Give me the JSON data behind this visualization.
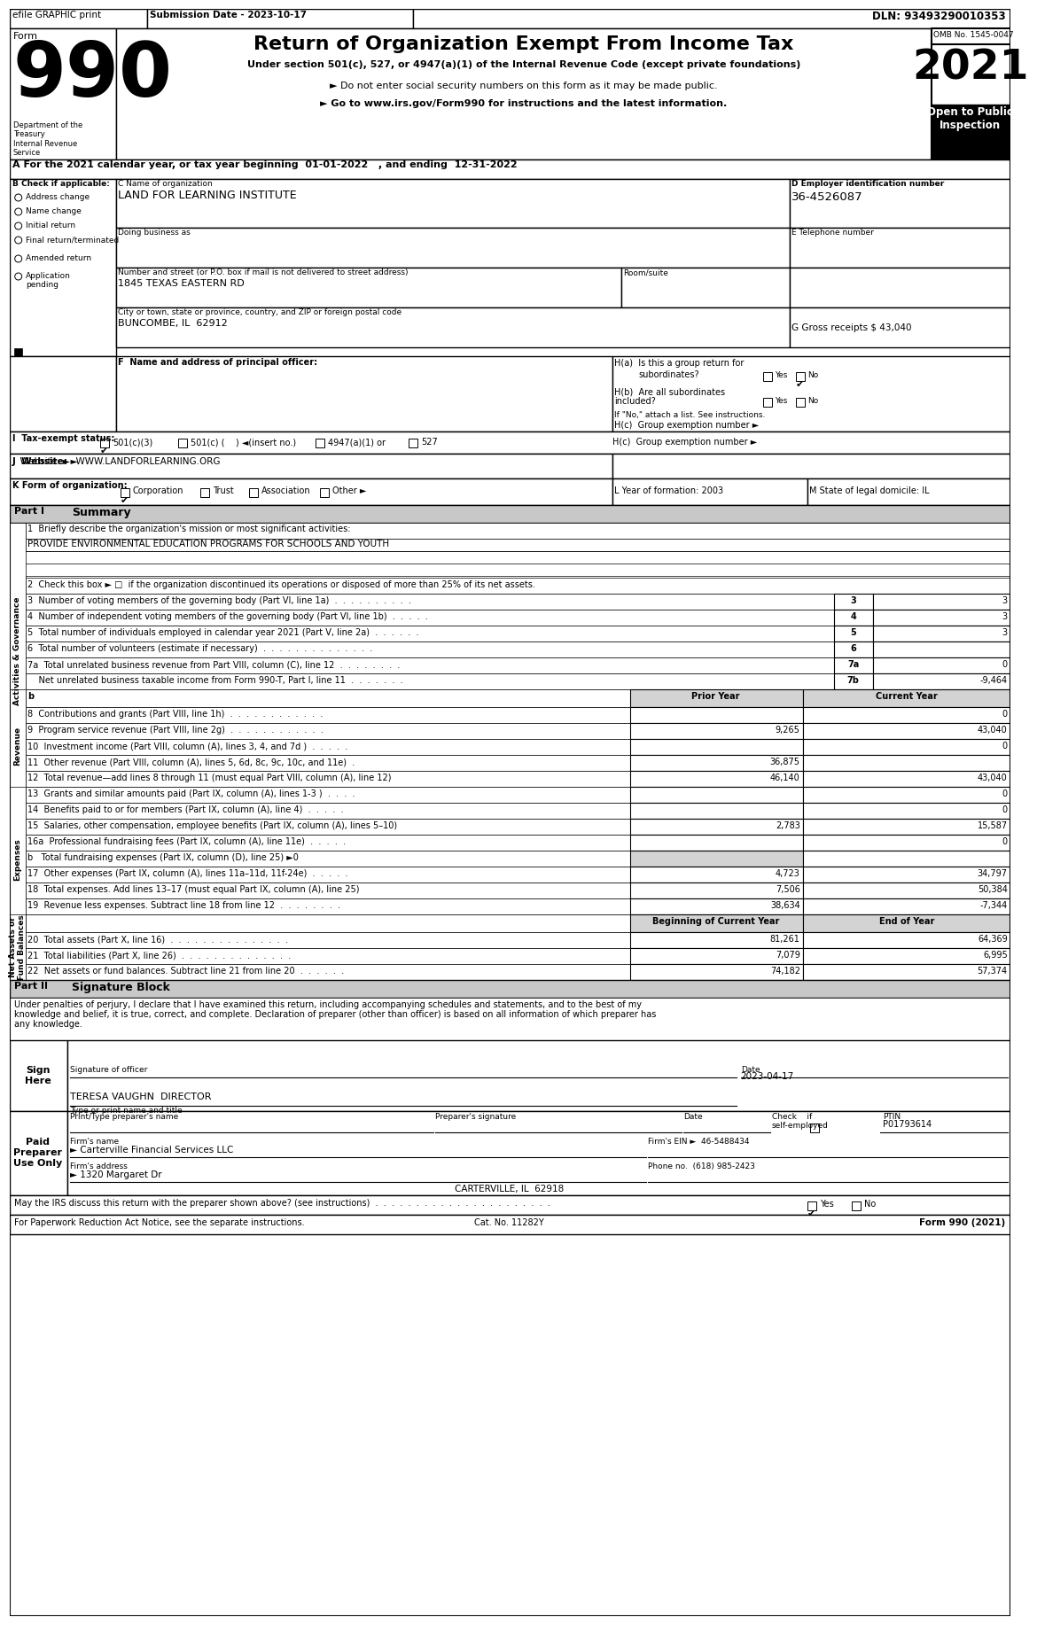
{
  "efile_text": "efile GRAPHIC print",
  "submission_date": "Submission Date - 2023-10-17",
  "dln": "DLN: 93493290010353",
  "title": "Return of Organization Exempt From Income Tax",
  "subtitle1": "Under section 501(c), 527, or 4947(a)(1) of the Internal Revenue Code (except private foundations)",
  "subtitle2": "► Do not enter social security numbers on this form as it may be made public.",
  "subtitle3": "► Go to www.irs.gov/Form990 for instructions and the latest information.",
  "year": "2021",
  "omb": "OMB No. 1545-0047",
  "open_to_public": "Open to Public\nInspection",
  "dept": "Department of the\nTreasury\nInternal Revenue\nService",
  "tax_year_line": "A For the 2021 calendar year, or tax year beginning  01-01-2022   , and ending  12-31-2022",
  "b_label": "B Check if applicable:",
  "c_label": "C Name of organization",
  "org_name": "LAND FOR LEARNING INSTITUTE",
  "dba_label": "Doing business as",
  "street_label": "Number and street (or P.O. box if mail is not delivered to street address)",
  "street": "1845 TEXAS EASTERN RD",
  "room_label": "Room/suite",
  "city_label": "City or town, state or province, country, and ZIP or foreign postal code",
  "city": "BUNCOMBE, IL  62912",
  "d_label": "D Employer identification number",
  "ein": "36-4526087",
  "e_label": "E Telephone number",
  "g_label": "G Gross receipts $ 43,040",
  "f_label": "F  Name and address of principal officer:",
  "ha_label": "H(a)  Is this a group return for",
  "ha_sub": "subordinates?",
  "hb_line1": "H(b)  Are all subordinates",
  "hb_line2": "included?",
  "hb_note": "If \"No,\" attach a list. See instructions.",
  "hc_label": "H(c)  Group exemption number ►",
  "i_label": "I  Tax-exempt status:",
  "i_501c3": "501(c)(3)",
  "i_501c": "501(c) (    ) ◄(insert no.)",
  "i_4947": "4947(a)(1) or",
  "i_527": "527",
  "j_label": "J  Website: ►",
  "website": "WWW.LANDFORLEARNING.ORG",
  "k_label": "K Form of organization:",
  "k_corp": "Corporation",
  "k_trust": "Trust",
  "k_assoc": "Association",
  "k_other": "Other ►",
  "l_label": "L Year of formation: 2003",
  "m_label": "M State of legal domicile: IL",
  "part1_label": "Part I",
  "part1_title": "Summary",
  "line1_label": "1  Briefly describe the organization's mission or most significant activities:",
  "line1_value": "PROVIDE ENVIRONMENTAL EDUCATION PROGRAMS FOR SCHOOLS AND YOUTH",
  "line2_text": "2  Check this box ►",
  "line2_rest": "if the organization discontinued its operations or disposed of more than 25% of its net assets.",
  "line3_label": "3  Number of voting members of the governing body (Part VI, line 1a)  .  .  .  .  .  .  .  .  .  .",
  "line3_num": "3",
  "line3_val": "3",
  "line4_label": "4  Number of independent voting members of the governing body (Part VI, line 1b)  .  .  .  .  .",
  "line4_num": "4",
  "line4_val": "3",
  "line5_label": "5  Total number of individuals employed in calendar year 2021 (Part V, line 2a)  .  .  .  .  .  .",
  "line5_num": "5",
  "line5_val": "3",
  "line6_label": "6  Total number of volunteers (estimate if necessary)  .  .  .  .  .  .  .  .  .  .  .  .  .  .",
  "line6_num": "6",
  "line6_val": "",
  "line7a_label": "7a  Total unrelated business revenue from Part VIII, column (C), line 12  .  .  .  .  .  .  .  .",
  "line7a_num": "7a",
  "line7a_val": "0",
  "line7b_label": "    Net unrelated business taxable income from Form 990-T, Part I, line 11  .  .  .  .  .  .  .",
  "line7b_num": "7b",
  "line7b_val": "-9,464",
  "b_header_label": "b",
  "prior_year_header": "Prior Year",
  "current_year_header": "Current Year",
  "line8_label": "8  Contributions and grants (Part VIII, line 1h)  .  .  .  .  .  .  .  .  .  .  .  .",
  "line8_num": "8",
  "line8_prior": "",
  "line8_current": "0",
  "line9_label": "9  Program service revenue (Part VIII, line 2g)  .  .  .  .  .  .  .  .  .  .  .  .",
  "line9_num": "9",
  "line9_prior": "9,265",
  "line9_current": "43,040",
  "line10_label": "10  Investment income (Part VIII, column (A), lines 3, 4, and 7d )  .  .  .  .  .",
  "line10_num": "10",
  "line10_prior": "",
  "line10_current": "0",
  "line11_label": "11  Other revenue (Part VIII, column (A), lines 5, 6d, 8c, 9c, 10c, and 11e)  .",
  "line11_num": "11",
  "line11_prior": "36,875",
  "line11_current": "",
  "line12_label": "12  Total revenue—add lines 8 through 11 (must equal Part VIII, column (A), line 12)",
  "line12_num": "12",
  "line12_prior": "46,140",
  "line12_current": "43,040",
  "line13_label": "13  Grants and similar amounts paid (Part IX, column (A), lines 1-3 )  .  .  .  .",
  "line13_num": "13",
  "line13_prior": "",
  "line13_current": "0",
  "line14_label": "14  Benefits paid to or for members (Part IX, column (A), line 4)  .  .  .  .  .",
  "line14_num": "14",
  "line14_prior": "",
  "line14_current": "0",
  "line15_label": "15  Salaries, other compensation, employee benefits (Part IX, column (A), lines 5–10)",
  "line15_num": "15",
  "line15_prior": "2,783",
  "line15_current": "15,587",
  "line16a_label": "16a  Professional fundraising fees (Part IX, column (A), line 11e)  .  .  .  .  .",
  "line16a_num": "16a",
  "line16a_prior": "",
  "line16a_current": "0",
  "line16b_label": "b   Total fundraising expenses (Part IX, column (D), line 25) ►0",
  "line17_label": "17  Other expenses (Part IX, column (A), lines 11a–11d, 11f-24e)  .  .  .  .  .",
  "line17_num": "17",
  "line17_prior": "4,723",
  "line17_current": "34,797",
  "line18_label": "18  Total expenses. Add lines 13–17 (must equal Part IX, column (A), line 25)",
  "line18_num": "18",
  "line18_prior": "7,506",
  "line18_current": "50,384",
  "line19_label": "19  Revenue less expenses. Subtract line 18 from line 12  .  .  .  .  .  .  .  .",
  "line19_num": "19",
  "line19_prior": "38,634",
  "line19_current": "-7,344",
  "boc_header": "Beginning of Current Year",
  "eoy_header": "End of Year",
  "line20_label": "20  Total assets (Part X, line 16)  .  .  .  .  .  .  .  .  .  .  .  .  .  .  .",
  "line20_num": "20",
  "line20_boc": "81,261",
  "line20_eoy": "64,369",
  "line21_label": "21  Total liabilities (Part X, line 26)  .  .  .  .  .  .  .  .  .  .  .  .  .  .",
  "line21_num": "21",
  "line21_boc": "7,079",
  "line21_eoy": "6,995",
  "line22_label": "22  Net assets or fund balances. Subtract line 21 from line 20  .  .  .  .  .  .",
  "line22_num": "22",
  "line22_boc": "74,182",
  "line22_eoy": "57,374",
  "part2_label": "Part II",
  "part2_title": "Signature Block",
  "sig_text1": "Under penalties of perjury, I declare that I have examined this return, including accompanying schedules and statements, and to the best of my",
  "sig_text2": "knowledge and belief, it is true, correct, and complete. Declaration of preparer (other than officer) is based on all information of which preparer has",
  "sig_text3": "any knowledge.",
  "sign_here": "Sign\nHere",
  "sig_date_label": "Date",
  "sig_date": "2023-04-17",
  "sig_officer_label": "Signature of officer",
  "sig_name": "TERESA VAUGHN  DIRECTOR",
  "sig_title_label": "Type or print name and title",
  "paid_preparer": "Paid\nPreparer\nUse Only",
  "preparer_name_label": "Print/Type preparer's name",
  "preparer_sig_label": "Preparer's signature",
  "date_label": "Date",
  "check_label": "Check    if",
  "selfemployed": "self-employed",
  "ptin_label": "PTIN",
  "ptin": "P01793614",
  "firm_name_label": "Firm's name",
  "firm_name": "► Carterville Financial Services LLC",
  "firm_ein_label": "Firm's EIN ►",
  "firm_ein": "46-5488434",
  "firm_address_label": "Firm's address",
  "firm_address": "► 1320 Margaret Dr",
  "firm_city": "CARTERVILLE, IL  62918",
  "phone_label": "Phone no.",
  "phone": "(618) 985-2423",
  "irs_discuss": "May the IRS discuss this return with the preparer shown above? (see instructions)  .  .  .  .  .  .  .  .  .  .  .  .  .  .  .  .  .  .  .  .  .  .",
  "paperwork_note": "For Paperwork Reduction Act Notice, see the separate instructions.",
  "cat_no": "Cat. No. 11282Y",
  "form_footer": "Form 990 (2021)",
  "side_label_activities": "Activities & Governance",
  "side_label_revenue": "Revenue",
  "side_label_expenses": "Expenses",
  "side_label_net_assets": "Net Assets or\nFund Balances"
}
